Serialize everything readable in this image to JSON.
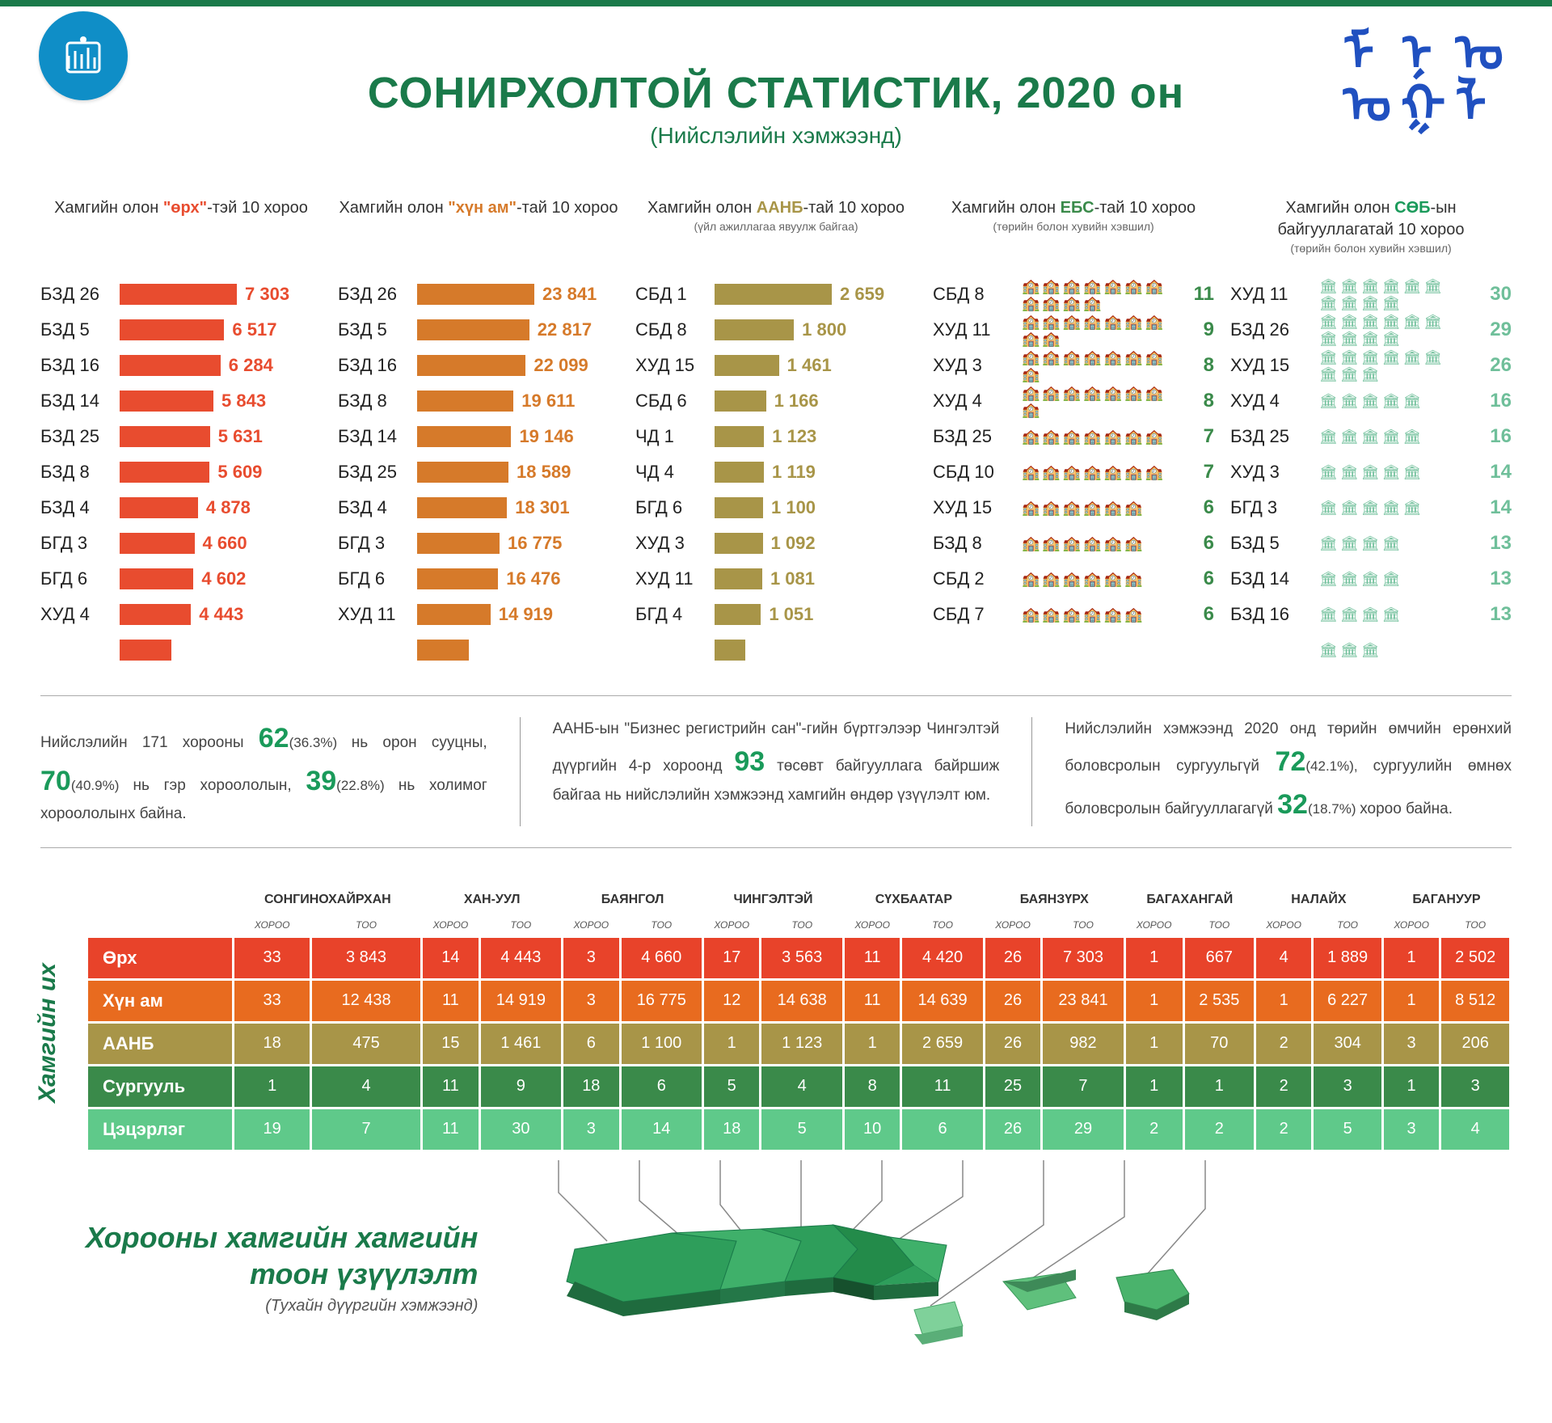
{
  "header": {
    "title": "СОНИРХОЛТОЙ СТАТИСТИК, 2020 он",
    "subtitle": "(Нийслэлийн хэмжээнд)"
  },
  "colors": {
    "primary_green": "#1a7a4a",
    "accent_green": "#1a9a5a",
    "bar_red": "#e84c2f",
    "bar_orange": "#d67a2a",
    "bar_olive": "#a89548",
    "icon_green": "#3a8a4a",
    "icon_teal": "#6fbf9a",
    "table_rows": [
      "#e8432a",
      "#e86b1f",
      "#a89548",
      "#3a8a4a",
      "#5fc98a"
    ],
    "logo_blue": "#0f8ec7",
    "script_blue": "#2050c0"
  },
  "charts": [
    {
      "title_pre": "Хамгийн олон",
      "title_hl": "\"өрх\"",
      "title_post": "-тэй 10 хороо",
      "hl_color": "#e84c2f",
      "type": "bar",
      "bar_color": "#e84c2f",
      "value_color": "#e84c2f",
      "max": 7303,
      "rows": [
        {
          "label": "БЗД 26",
          "value": "7 303",
          "n": 7303
        },
        {
          "label": "БЗД 5",
          "value": "6 517",
          "n": 6517
        },
        {
          "label": "БЗД 16",
          "value": "6 284",
          "n": 6284
        },
        {
          "label": "БЗД 14",
          "value": "5 843",
          "n": 5843
        },
        {
          "label": "БЗД 25",
          "value": "5 631",
          "n": 5631
        },
        {
          "label": "БЗД 8",
          "value": "5 609",
          "n": 5609
        },
        {
          "label": "БЗД 4",
          "value": "4 878",
          "n": 4878
        },
        {
          "label": "БГД 3",
          "value": "4 660",
          "n": 4660
        },
        {
          "label": "БГД 6",
          "value": "4 602",
          "n": 4602
        },
        {
          "label": "ХУД 4",
          "value": "4 443",
          "n": 4443
        }
      ],
      "extra_bar": 3200
    },
    {
      "title_pre": "Хамгийн олон",
      "title_hl": "\"хүн ам\"",
      "title_post": "-тай 10 хороо",
      "hl_color": "#d67a2a",
      "type": "bar",
      "bar_color": "#d67a2a",
      "value_color": "#d67a2a",
      "max": 23841,
      "rows": [
        {
          "label": "БЗД 26",
          "value": "23 841",
          "n": 23841
        },
        {
          "label": "БЗД 5",
          "value": "22 817",
          "n": 22817
        },
        {
          "label": "БЗД 16",
          "value": "22 099",
          "n": 22099
        },
        {
          "label": "БЗД 8",
          "value": "19 611",
          "n": 19611
        },
        {
          "label": "БЗД 14",
          "value": "19 146",
          "n": 19146
        },
        {
          "label": "БЗД 25",
          "value": "18 589",
          "n": 18589
        },
        {
          "label": "БЗД 4",
          "value": "18 301",
          "n": 18301
        },
        {
          "label": "БГД 3",
          "value": "16 775",
          "n": 16775
        },
        {
          "label": "БГД 6",
          "value": "16 476",
          "n": 16476
        },
        {
          "label": "ХУД 11",
          "value": "14 919",
          "n": 14919
        }
      ],
      "extra_bar": 10500
    },
    {
      "title_pre": "Хамгийн олон",
      "title_hl": "ААНБ",
      "title_post": "-тай 10 хороо",
      "subtitle": "(үйл ажиллагаа явуулж байгаа)",
      "hl_color": "#a89548",
      "type": "bar",
      "bar_color": "#a89548",
      "value_color": "#a89548",
      "max": 2659,
      "rows": [
        {
          "label": "СБД 1",
          "value": "2 659",
          "n": 2659
        },
        {
          "label": "СБД 8",
          "value": "1 800",
          "n": 1800
        },
        {
          "label": "ХУД 15",
          "value": "1 461",
          "n": 1461
        },
        {
          "label": "СБД 6",
          "value": "1 166",
          "n": 1166
        },
        {
          "label": "ЧД 1",
          "value": "1 123",
          "n": 1123
        },
        {
          "label": "ЧД 4",
          "value": "1 119",
          "n": 1119
        },
        {
          "label": "БГД 6",
          "value": "1 100",
          "n": 1100
        },
        {
          "label": "ХУД 3",
          "value": "1 092",
          "n": 1092
        },
        {
          "label": "ХУД 11",
          "value": "1 081",
          "n": 1081
        },
        {
          "label": "БГД 4",
          "value": "1 051",
          "n": 1051
        }
      ],
      "extra_bar": 700
    },
    {
      "title_pre": "Хамгийн олон",
      "title_hl": "ЕБС",
      "title_post": "-тай 10 хороо",
      "subtitle": "(төрийн болон хувийн хэвшил)",
      "hl_color": "#3a8a4a",
      "type": "icon",
      "icon_glyph": "🏫",
      "icon_color": "#3a8a4a",
      "value_color": "#3a8a4a",
      "rows": [
        {
          "label": "СБД 8",
          "value": "11",
          "n": 11
        },
        {
          "label": "ХУД 11",
          "value": "9",
          "n": 9
        },
        {
          "label": "ХУД 3",
          "value": "8",
          "n": 8
        },
        {
          "label": "ХУД 4",
          "value": "8",
          "n": 8
        },
        {
          "label": "БЗД 25",
          "value": "7",
          "n": 7
        },
        {
          "label": "СБД 10",
          "value": "7",
          "n": 7
        },
        {
          "label": "ХУД 15",
          "value": "6",
          "n": 6
        },
        {
          "label": "БЗД 8",
          "value": "6",
          "n": 6
        },
        {
          "label": "СБД 2",
          "value": "6",
          "n": 6
        },
        {
          "label": "СБД 7",
          "value": "6",
          "n": 6
        }
      ]
    },
    {
      "title_pre": "Хамгийн олон ",
      "title_hl": "СӨБ",
      "title_post": "-ын байгууллагатай 10 хороо",
      "subtitle": "(төрийн болон хувийн хэвшил)",
      "hl_color": "#1a9a5a",
      "type": "icon",
      "icon_glyph": "🏛",
      "icon_color": "#6fbf9a",
      "value_color": "#6fbf9a",
      "icons_per_row": 7,
      "divisor": 3,
      "rows": [
        {
          "label": "ХУД 11",
          "value": "30",
          "n": 30
        },
        {
          "label": "БЗД 26",
          "value": "29",
          "n": 29
        },
        {
          "label": "ХУД 15",
          "value": "26",
          "n": 26
        },
        {
          "label": "ХУД 4",
          "value": "16",
          "n": 16
        },
        {
          "label": "БЗД 25",
          "value": "16",
          "n": 16
        },
        {
          "label": "ХУД 3",
          "value": "14",
          "n": 14
        },
        {
          "label": "БГД 3",
          "value": "14",
          "n": 14
        },
        {
          "label": "БЗД 5",
          "value": "13",
          "n": 13
        },
        {
          "label": "БЗД 14",
          "value": "13",
          "n": 13
        },
        {
          "label": "БЗД 16",
          "value": "13",
          "n": 13
        }
      ],
      "extra_icons": 3
    }
  ],
  "summaries": [
    {
      "parts": [
        {
          "t": "Нийслэлийн 171 хорооны "
        },
        {
          "t": "62",
          "big": true
        },
        {
          "t": "(36.3%) ",
          "pct": true
        },
        {
          "t": "нь орон сууцны, "
        },
        {
          "t": "70",
          "big": true
        },
        {
          "t": "(40.9%) ",
          "pct": true
        },
        {
          "t": "нь гэр хороололын, "
        },
        {
          "t": "39",
          "big": true
        },
        {
          "t": "(22.8%) ",
          "pct": true
        },
        {
          "t": "нь холимог хороололынх байна."
        }
      ]
    },
    {
      "parts": [
        {
          "t": "ААНБ-ын \"Бизнес регистрийн сан\"-гийн бүртгэлээр Чингэлтэй дүүргийн 4-р хороонд "
        },
        {
          "t": "93",
          "big": true
        },
        {
          "t": " төсөвт байгууллага байршиж байгаа нь нийслэлийн хэмжээнд хамгийн өндөр үзүүлэлт юм."
        }
      ]
    },
    {
      "parts": [
        {
          "t": "Нийслэлийн хэмжээнд 2020 онд төрийн өмчийн ерөнхий боловсролын сургуульгүй "
        },
        {
          "t": "72",
          "big": true
        },
        {
          "t": "(42.1%), ",
          "pct": true
        },
        {
          "t": "сургуулийн өмнөх боловсролын байгууллагагүй "
        },
        {
          "t": "32",
          "big": true
        },
        {
          "t": "(18.7%) ",
          "pct": true
        },
        {
          "t": "хороо байна."
        }
      ]
    }
  ],
  "table": {
    "side_label": "Хамгийн их",
    "districts": [
      "СОНГИНОХАЙРХАН",
      "ХАН-УУЛ",
      "БАЯНГОЛ",
      "ЧИНГЭЛТЭЙ",
      "СҮХБААТАР",
      "БАЯНЗҮРХ",
      "БАГАХАНГАЙ",
      "НАЛАЙХ",
      "БАГАНУУР"
    ],
    "sub_headers": [
      "ХОРОО",
      "ТОО"
    ],
    "rows": [
      {
        "name": "Өрх",
        "color": "#e8432a",
        "cells": [
          [
            "33",
            "3 843"
          ],
          [
            "14",
            "4 443"
          ],
          [
            "3",
            "4 660"
          ],
          [
            "17",
            "3 563"
          ],
          [
            "11",
            "4 420"
          ],
          [
            "26",
            "7 303"
          ],
          [
            "1",
            "667"
          ],
          [
            "4",
            "1 889"
          ],
          [
            "1",
            "2 502"
          ]
        ]
      },
      {
        "name": "Хүн ам",
        "color": "#e86b1f",
        "cells": [
          [
            "33",
            "12 438"
          ],
          [
            "11",
            "14 919"
          ],
          [
            "3",
            "16 775"
          ],
          [
            "12",
            "14 638"
          ],
          [
            "11",
            "14 639"
          ],
          [
            "26",
            "23 841"
          ],
          [
            "1",
            "2 535"
          ],
          [
            "1",
            "6 227"
          ],
          [
            "1",
            "8 512"
          ]
        ]
      },
      {
        "name": "ААНБ",
        "color": "#a89548",
        "cells": [
          [
            "18",
            "475"
          ],
          [
            "15",
            "1 461"
          ],
          [
            "6",
            "1 100"
          ],
          [
            "1",
            "1 123"
          ],
          [
            "1",
            "2 659"
          ],
          [
            "26",
            "982"
          ],
          [
            "1",
            "70"
          ],
          [
            "2",
            "304"
          ],
          [
            "3",
            "206"
          ]
        ]
      },
      {
        "name": "Сургууль",
        "color": "#3a8a4a",
        "cells": [
          [
            "1",
            "4"
          ],
          [
            "11",
            "9"
          ],
          [
            "18",
            "6"
          ],
          [
            "5",
            "4"
          ],
          [
            "8",
            "11"
          ],
          [
            "25",
            "7"
          ],
          [
            "1",
            "1"
          ],
          [
            "2",
            "3"
          ],
          [
            "1",
            "3"
          ]
        ]
      },
      {
        "name": "Цэцэрлэг",
        "color": "#5fc98a",
        "cells": [
          [
            "19",
            "7"
          ],
          [
            "11",
            "30"
          ],
          [
            "3",
            "14"
          ],
          [
            "18",
            "5"
          ],
          [
            "10",
            "6"
          ],
          [
            "26",
            "29"
          ],
          [
            "2",
            "2"
          ],
          [
            "2",
            "5"
          ],
          [
            "3",
            "4"
          ]
        ]
      }
    ]
  },
  "map": {
    "title_l1": "Хорооны хамгийн хамгийн",
    "title_l2": "тоон үзүүлэлт",
    "subtitle": "(Тухайн дүүргийн хэмжээнд)"
  }
}
